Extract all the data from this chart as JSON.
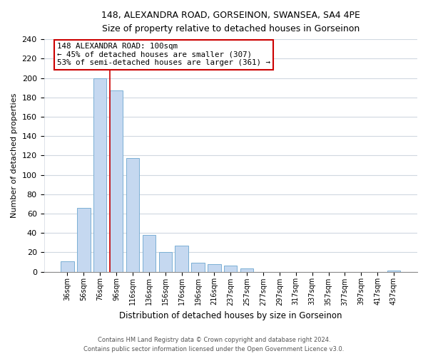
{
  "title1": "148, ALEXANDRA ROAD, GORSEINON, SWANSEA, SA4 4PE",
  "title2": "Size of property relative to detached houses in Gorseinon",
  "xlabel": "Distribution of detached houses by size in Gorseinon",
  "ylabel": "Number of detached properties",
  "bar_labels": [
    "36sqm",
    "56sqm",
    "76sqm",
    "96sqm",
    "116sqm",
    "136sqm",
    "156sqm",
    "176sqm",
    "196sqm",
    "216sqm",
    "237sqm",
    "257sqm",
    "277sqm",
    "297sqm",
    "317sqm",
    "337sqm",
    "357sqm",
    "377sqm",
    "397sqm",
    "417sqm",
    "437sqm"
  ],
  "bar_values": [
    11,
    66,
    200,
    187,
    117,
    38,
    20,
    27,
    9,
    8,
    6,
    3,
    0,
    0,
    0,
    0,
    0,
    0,
    0,
    0,
    1
  ],
  "bar_color": "#c5d8f0",
  "bar_edge_color": "#7aafd4",
  "highlight_line_color": "#cc0000",
  "box_text_line1": "148 ALEXANDRA ROAD: 100sqm",
  "box_text_line2": "← 45% of detached houses are smaller (307)",
  "box_text_line3": "53% of semi-detached houses are larger (361) →",
  "box_color": "#ffffff",
  "box_edge_color": "#cc0000",
  "ylim": [
    0,
    240
  ],
  "yticks": [
    0,
    20,
    40,
    60,
    80,
    100,
    120,
    140,
    160,
    180,
    200,
    220,
    240
  ],
  "footer1": "Contains HM Land Registry data © Crown copyright and database right 2024.",
  "footer2": "Contains public sector information licensed under the Open Government Licence v3.0.",
  "bg_color": "#ffffff",
  "grid_color": "#d0d8e0"
}
